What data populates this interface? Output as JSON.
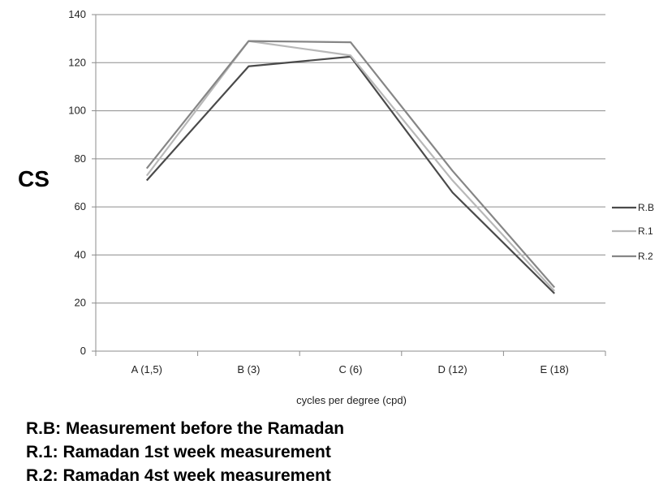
{
  "chart_data": {
    "type": "line",
    "categories": [
      "A (1,5)",
      "B (3)",
      "C (6)",
      "D (12)",
      "E (18)"
    ],
    "series": [
      {
        "name": "R.B",
        "values": [
          71,
          118.5,
          122.5,
          66,
          24
        ],
        "color": "#4a4a4a"
      },
      {
        "name": "R.1",
        "values": [
          73,
          129,
          123,
          71,
          25
        ],
        "color": "#b8b8b8"
      },
      {
        "name": "R.2",
        "values": [
          76,
          129,
          128.5,
          75,
          26.5
        ],
        "color": "#868686"
      }
    ],
    "ylabel": "CS",
    "xlabel": "cycles per degree (cpd)",
    "ylim": [
      0,
      140
    ],
    "yticks": [
      0,
      20,
      40,
      60,
      80,
      100,
      120,
      140
    ],
    "grid": true,
    "legend_position": "right"
  },
  "notes": [
    "R.B: Measurement before the Ramadan",
    "R.1: Ramadan 1st week measurement",
    "R.2: Ramadan 4st week measurement"
  ]
}
